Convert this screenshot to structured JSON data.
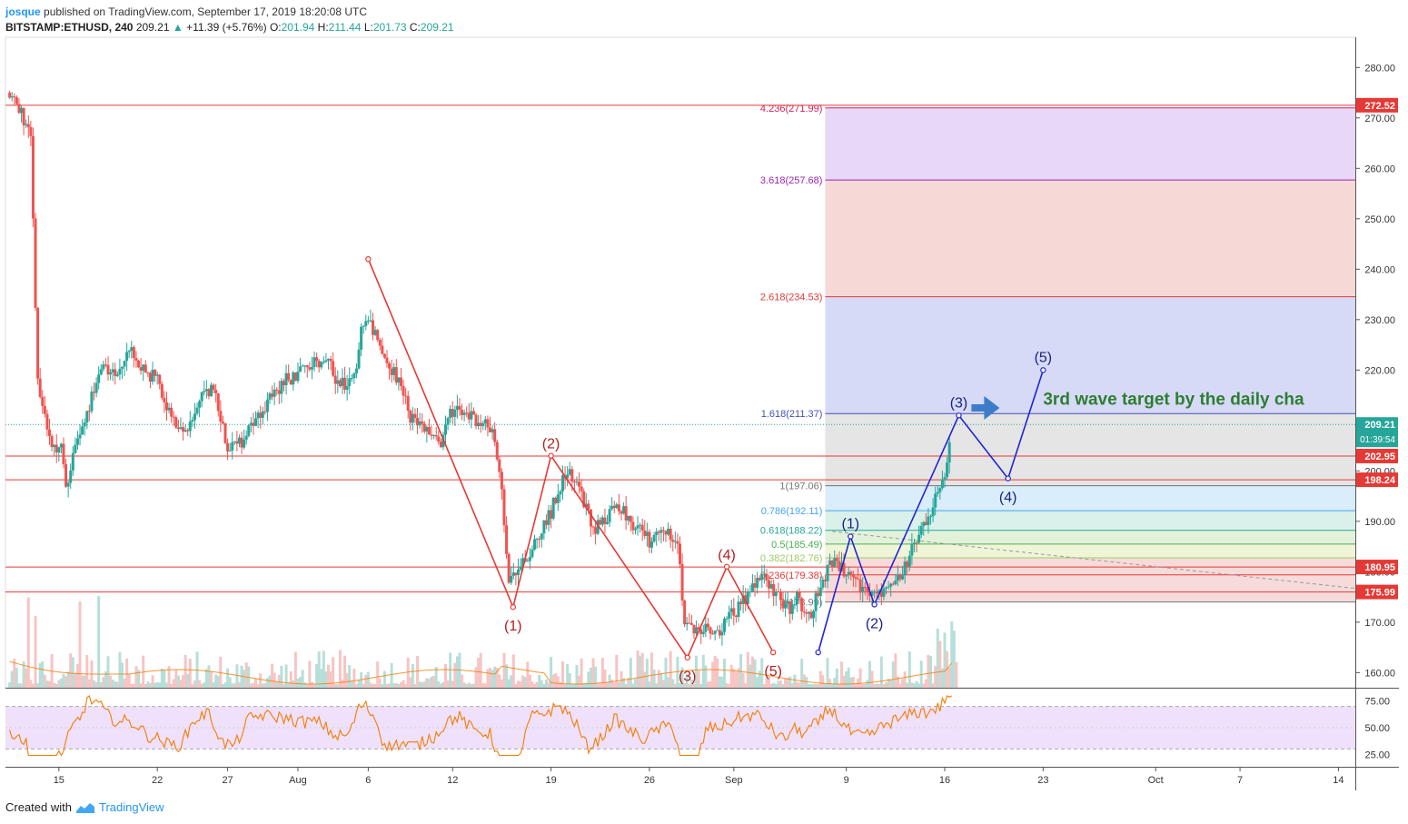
{
  "header": {
    "author": "josque",
    "published_text": "published on TradingView.com, September 17, 2019 18:20:08 UTC",
    "symbol": "BITSTAMP:ETHUSD, 240",
    "last": "209.21",
    "change": "+11.39 (+5.76%)",
    "open_label": "O:",
    "open": "201.94",
    "high_label": "H:",
    "high": "211.44",
    "low_label": "L:",
    "low": "201.73",
    "close_label": "C:",
    "close": "209.21"
  },
  "footer": {
    "created_with": "Created with",
    "brand": "TradingView"
  },
  "colors": {
    "up": "#26a69a",
    "down": "#ef5350",
    "red_line": "#e53935",
    "blue_line": "#1f24d6",
    "rsi": "#f57c00",
    "rsi_band": "#efe1fb",
    "wave_red_label": "#b71c1c",
    "wave_blue_label": "#1a237e",
    "annotation": "#2e7d32",
    "arrow": "#3d7cc9"
  },
  "chart_data": {
    "type": "candlestick",
    "y_range": [
      157,
      286
    ],
    "y_ticks": [
      "280.00",
      "270.00",
      "260.00",
      "250.00",
      "240.00",
      "230.00",
      "220.00",
      "210.00",
      "200.00",
      "190.00",
      "180.00",
      "170.00",
      "160.00"
    ],
    "x_ticks": [
      {
        "label": "15",
        "day": 15
      },
      {
        "label": "22",
        "day": 22
      },
      {
        "label": "27",
        "day": 27
      },
      {
        "label": "Aug",
        "day": 32
      },
      {
        "label": "6",
        "day": 37
      },
      {
        "label": "12",
        "day": 43
      },
      {
        "label": "19",
        "day": 50
      },
      {
        "label": "26",
        "day": 57
      },
      {
        "label": "Sep",
        "day": 63
      },
      {
        "label": "9",
        "day": 71
      },
      {
        "label": "16",
        "day": 78
      },
      {
        "label": "23",
        "day": 85
      },
      {
        "label": "Oct",
        "day": 93
      },
      {
        "label": "7",
        "day": 99
      },
      {
        "label": "14",
        "day": 106
      }
    ],
    "price_anchors": [
      [
        11.5,
        275
      ],
      [
        12.5,
        270
      ],
      [
        13,
        265
      ],
      [
        13.5,
        218
      ],
      [
        14,
        210
      ],
      [
        14.5,
        205
      ],
      [
        15.2,
        204
      ],
      [
        15.5,
        197
      ],
      [
        16,
        203
      ],
      [
        17,
        212
      ],
      [
        18,
        220
      ],
      [
        19,
        219
      ],
      [
        20,
        224
      ],
      [
        21,
        220
      ],
      [
        22,
        218
      ],
      [
        23,
        210
      ],
      [
        24,
        207
      ],
      [
        25,
        214
      ],
      [
        26,
        216
      ],
      [
        27,
        205
      ],
      [
        28,
        206
      ],
      [
        29,
        211
      ],
      [
        30,
        214
      ],
      [
        31,
        218
      ],
      [
        32,
        219
      ],
      [
        33,
        222
      ],
      [
        34,
        222
      ],
      [
        35,
        217
      ],
      [
        36,
        218
      ],
      [
        36.5,
        228
      ],
      [
        37,
        231
      ],
      [
        38,
        222
      ],
      [
        39,
        219
      ],
      [
        40,
        211
      ],
      [
        41,
        208
      ],
      [
        42,
        205
      ],
      [
        43,
        212
      ],
      [
        44,
        211
      ],
      [
        45,
        210
      ],
      [
        46,
        207
      ],
      [
        46.5,
        195
      ],
      [
        47,
        179
      ],
      [
        48,
        182
      ],
      [
        49,
        186
      ],
      [
        50,
        192
      ],
      [
        51,
        200
      ],
      [
        52,
        197
      ],
      [
        53,
        188
      ],
      [
        54,
        191
      ],
      [
        55,
        193
      ],
      [
        56,
        189
      ],
      [
        57,
        186
      ],
      [
        58,
        188
      ],
      [
        59,
        187
      ],
      [
        59.5,
        170
      ],
      [
        60,
        168
      ],
      [
        61,
        169
      ],
      [
        62,
        168
      ],
      [
        63,
        172
      ],
      [
        64,
        175
      ],
      [
        64.5,
        178
      ],
      [
        65,
        180
      ],
      [
        66,
        175
      ],
      [
        67,
        173
      ],
      [
        67.5,
        176
      ],
      [
        68,
        172
      ],
      [
        68.5,
        171
      ],
      [
        69,
        176
      ],
      [
        70,
        182
      ],
      [
        71,
        180
      ],
      [
        72,
        177
      ],
      [
        73,
        175
      ],
      [
        74,
        178
      ],
      [
        75,
        180
      ],
      [
        76,
        187
      ],
      [
        77,
        190
      ],
      [
        77.5,
        196
      ],
      [
        78,
        200
      ],
      [
        78.5,
        209
      ]
    ],
    "horizontal_levels": [
      {
        "price": 272.52,
        "label": "272.52"
      },
      {
        "price": 202.95,
        "label": "202.95"
      },
      {
        "price": 198.24,
        "label": "198.24"
      },
      {
        "price": 180.95,
        "label": "180.95"
      },
      {
        "price": 175.99,
        "label": "175.99"
      }
    ],
    "price_tags": [
      {
        "price": 209.21,
        "label": "209.21",
        "sub": "01:39:54"
      }
    ],
    "fib_extension": {
      "from_day": 69.5,
      "to_day": 106.5,
      "levels": [
        {
          "ratio": "4.236",
          "price": 271.99,
          "label": "4.236(271.99)",
          "line": "#d81b60",
          "fill": "#f5cfe2"
        },
        {
          "ratio": "3.618",
          "price": 257.68,
          "label": "3.618(257.68)",
          "line": "#9c27b0",
          "fill": "#e6d3f5"
        },
        {
          "ratio": "2.618",
          "price": 234.53,
          "label": "2.618(234.53)",
          "line": "#e53935",
          "fill": "#f5d5d3"
        },
        {
          "ratio": "1.618",
          "price": 211.37,
          "label": "1.618(211.37)",
          "line": "#3f51b5",
          "fill": "#d3d6f6"
        },
        {
          "ratio": "1",
          "price": 197.06,
          "label": "1(197.06)",
          "line": "#757575",
          "fill": "#e2e2e2"
        },
        {
          "ratio": "0.786",
          "price": 192.11,
          "label": "0.786(192.11)",
          "line": "#42a5f5",
          "fill": "#d6ebfa"
        },
        {
          "ratio": "0.618",
          "price": 188.22,
          "label": "0.618(188.22)",
          "line": "#26a69a",
          "fill": "#d5efe8"
        },
        {
          "ratio": "0.5",
          "price": 185.49,
          "label": "0.5(185.49)",
          "line": "#4caf50",
          "fill": "#dff1d6"
        },
        {
          "ratio": "0.382",
          "price": 182.76,
          "label": "0.382(182.76)",
          "line": "#9ccc65",
          "fill": "#eef4d4"
        },
        {
          "ratio": "0.236",
          "price": 179.38,
          "label": "0.236(179.38)",
          "line": "#e53935",
          "fill": "#f6d7d7"
        },
        {
          "ratio": "0",
          "price": 174.0,
          "label": "0(173.99)",
          "line": "#757575",
          "fill": "#f6d7d7"
        }
      ]
    },
    "red_wave": {
      "points": [
        [
          37.0,
          242
        ],
        [
          47.3,
          173
        ],
        [
          50.0,
          203
        ],
        [
          59.7,
          163
        ],
        [
          62.5,
          181
        ],
        [
          65.8,
          164
        ]
      ],
      "labels": [
        "(1)",
        "(2)",
        "(3)",
        "(4)",
        "(5)"
      ]
    },
    "blue_wave": {
      "points": [
        [
          69.0,
          164
        ],
        [
          71.3,
          187
        ],
        [
          73.0,
          173.5
        ],
        [
          79.0,
          211
        ],
        [
          82.5,
          198.5
        ],
        [
          85.0,
          220
        ]
      ],
      "labels": [
        "(1)",
        "(2)",
        "(3)",
        "(4)",
        "(5)"
      ]
    },
    "annotation": "3rd wave target by the daily cha",
    "rsi": {
      "ticks": [
        "75.00",
        "50.00",
        "25.00"
      ],
      "range": [
        15,
        85
      ],
      "upper": 70,
      "lower": 30
    }
  }
}
